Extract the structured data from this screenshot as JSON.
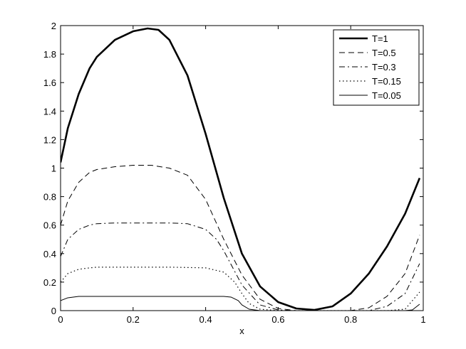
{
  "chart_data": {
    "type": "line",
    "title": "",
    "xlabel": "x",
    "ylabel": "",
    "xlim": [
      0,
      1
    ],
    "ylim": [
      0,
      2
    ],
    "xticks": [
      0,
      0.2,
      0.4,
      0.6,
      0.8,
      1
    ],
    "xtick_labels": [
      "0",
      "0.2",
      "0.4",
      "0.6",
      "0.8",
      "1"
    ],
    "yticks": [
      0,
      0.2,
      0.4,
      0.6,
      0.8,
      1,
      1.2,
      1.4,
      1.6,
      1.8,
      2
    ],
    "ytick_labels": [
      "0",
      "0.2",
      "0.4",
      "0.6",
      "0.8",
      "1",
      "1.2",
      "1.4",
      "1.6",
      "1.8",
      "2"
    ],
    "grid": false,
    "legend_position": "top-right",
    "series": [
      {
        "name": "T=1",
        "style": "solid-thick",
        "color": "#000000",
        "x": [
          0,
          0.02,
          0.05,
          0.08,
          0.1,
          0.15,
          0.2,
          0.24,
          0.27,
          0.3,
          0.35,
          0.4,
          0.45,
          0.5,
          0.55,
          0.6,
          0.65,
          0.7,
          0.75,
          0.8,
          0.85,
          0.9,
          0.95,
          0.99
        ],
        "y": [
          1.04,
          1.28,
          1.52,
          1.7,
          1.78,
          1.9,
          1.96,
          1.98,
          1.97,
          1.9,
          1.65,
          1.24,
          0.79,
          0.4,
          0.17,
          0.06,
          0.015,
          0.005,
          0.03,
          0.12,
          0.26,
          0.45,
          0.68,
          0.93
        ]
      },
      {
        "name": "T=0.5",
        "style": "dashed",
        "color": "#000000",
        "x": [
          0,
          0.02,
          0.05,
          0.08,
          0.1,
          0.15,
          0.2,
          0.25,
          0.3,
          0.35,
          0.4,
          0.45,
          0.5,
          0.55,
          0.6,
          0.65,
          0.7,
          0.75,
          0.8,
          0.85,
          0.9,
          0.95,
          0.99
        ],
        "y": [
          0.6,
          0.77,
          0.9,
          0.97,
          0.99,
          1.01,
          1.02,
          1.02,
          1.0,
          0.95,
          0.78,
          0.5,
          0.25,
          0.08,
          0.015,
          0.0,
          0.0,
          0.0,
          0.0,
          0.02,
          0.1,
          0.26,
          0.53
        ]
      },
      {
        "name": "T=0.3",
        "style": "dash-dot",
        "color": "#000000",
        "x": [
          0,
          0.02,
          0.05,
          0.08,
          0.1,
          0.15,
          0.2,
          0.25,
          0.3,
          0.35,
          0.4,
          0.43,
          0.45,
          0.5,
          0.55,
          0.6,
          0.65,
          0.7,
          0.75,
          0.8,
          0.85,
          0.9,
          0.95,
          0.99
        ],
        "y": [
          0.38,
          0.5,
          0.57,
          0.6,
          0.61,
          0.615,
          0.615,
          0.615,
          0.615,
          0.61,
          0.57,
          0.5,
          0.42,
          0.18,
          0.04,
          0.005,
          0.0,
          0.0,
          0.0,
          0.0,
          0.0,
          0.03,
          0.12,
          0.33
        ]
      },
      {
        "name": "T=0.15",
        "style": "dotted",
        "color": "#000000",
        "x": [
          0,
          0.02,
          0.05,
          0.08,
          0.1,
          0.2,
          0.3,
          0.4,
          0.45,
          0.48,
          0.5,
          0.52,
          0.55,
          0.6,
          0.7,
          0.8,
          0.9,
          0.95,
          0.99
        ],
        "y": [
          0.2,
          0.26,
          0.29,
          0.3,
          0.305,
          0.305,
          0.305,
          0.3,
          0.27,
          0.2,
          0.12,
          0.05,
          0.01,
          0.0,
          0.0,
          0.0,
          0.0,
          0.01,
          0.13
        ]
      },
      {
        "name": "T=0.05",
        "style": "solid-thin",
        "color": "#000000",
        "x": [
          0,
          0.02,
          0.05,
          0.08,
          0.1,
          0.2,
          0.3,
          0.4,
          0.45,
          0.47,
          0.49,
          0.5,
          0.52,
          0.55,
          0.6,
          0.7,
          0.8,
          0.9,
          0.95,
          0.97,
          0.99
        ],
        "y": [
          0.07,
          0.09,
          0.1,
          0.1,
          0.1,
          0.1,
          0.1,
          0.1,
          0.1,
          0.095,
          0.07,
          0.04,
          0.01,
          0.0,
          0.0,
          0.0,
          0.0,
          0.0,
          0.0,
          0.005,
          0.045
        ]
      }
    ]
  }
}
